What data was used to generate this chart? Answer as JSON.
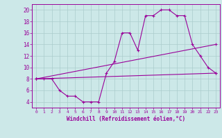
{
  "xlabel": "Windchill (Refroidissement éolien,°C)",
  "bg_color": "#cce8e8",
  "line_color": "#990099",
  "xlim": [
    -0.5,
    23.5
  ],
  "ylim": [
    3.0,
    21.0
  ],
  "yticks": [
    4,
    6,
    8,
    10,
    12,
    14,
    16,
    18,
    20
  ],
  "xticks": [
    0,
    1,
    2,
    3,
    4,
    5,
    6,
    7,
    8,
    9,
    10,
    11,
    12,
    13,
    14,
    15,
    16,
    17,
    18,
    19,
    20,
    21,
    22,
    23
  ],
  "series1_x": [
    0,
    1,
    2,
    3,
    4,
    5,
    6,
    7,
    8,
    9,
    10,
    11,
    12,
    13,
    14,
    15,
    16,
    17,
    18,
    19,
    20,
    21,
    22,
    23
  ],
  "series1_y": [
    8,
    8,
    8,
    6,
    5,
    5,
    4,
    4,
    4,
    9,
    11,
    16,
    16,
    13,
    19,
    19,
    20,
    20,
    19,
    19,
    14,
    12,
    10,
    9
  ],
  "series2_x": [
    0,
    23
  ],
  "series2_y": [
    8,
    9
  ],
  "series3_x": [
    0,
    23
  ],
  "series3_y": [
    8,
    14
  ],
  "marker": "+"
}
